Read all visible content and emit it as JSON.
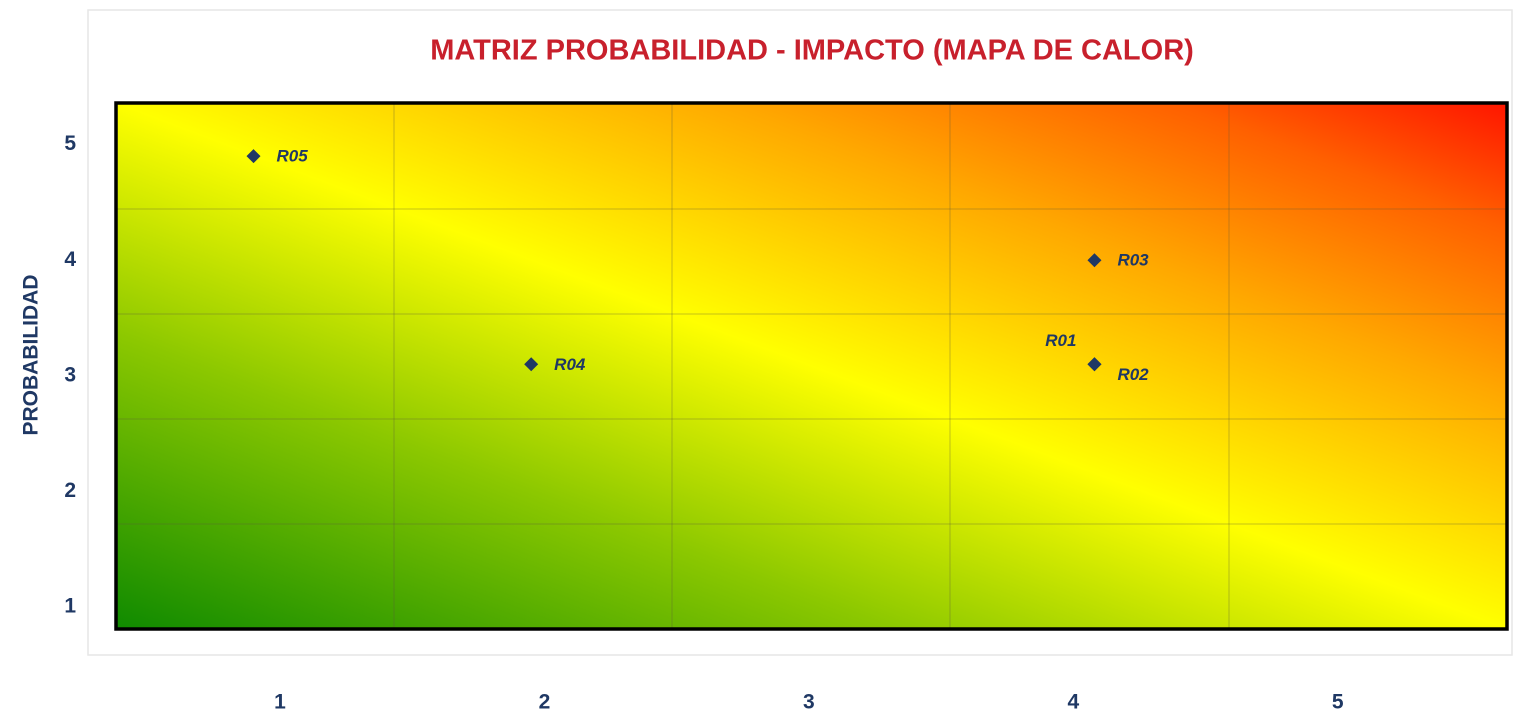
{
  "chart_data": {
    "type": "scatter",
    "title": "MATRIZ PROBABILIDAD - IMPACTO (MAPA DE CALOR)",
    "y_label": "PROBABILIDAD",
    "labels": [
      "R01",
      "R02",
      "R03",
      "R04",
      "R05"
    ],
    "x": [
      4.08,
      4.08,
      4.08,
      1.95,
      0.9
    ],
    "y": [
      3.1,
      3.1,
      4.0,
      3.1,
      4.9
    ],
    "color": "#1f3864",
    "xlim": [
      0.38,
      5.64
    ],
    "ylim": [
      0.81,
      5.36
    ],
    "xticks": [
      1,
      2,
      3,
      4,
      5
    ],
    "yticks": [
      1,
      2,
      3,
      4,
      5
    ]
  }
}
